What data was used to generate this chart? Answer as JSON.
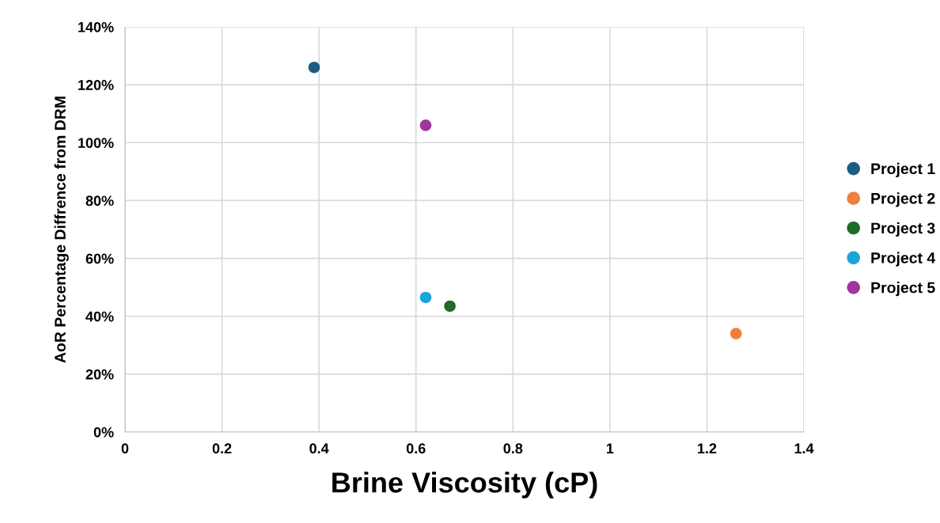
{
  "chart_data": {
    "type": "scatter",
    "xlabel": "Brine Viscosity (cP)",
    "ylabel": "AoR Percentage Diffrence from DRM",
    "series": [
      {
        "name": "Project 1",
        "color": "#1b5e80",
        "x": [
          0.39
        ],
        "values": [
          126
        ]
      },
      {
        "name": "Project 2",
        "color": "#f07f3c",
        "x": [
          1.26
        ],
        "values": [
          34
        ]
      },
      {
        "name": "Project 3",
        "color": "#1e6b2a",
        "x": [
          0.67
        ],
        "values": [
          43.5
        ]
      },
      {
        "name": "Project 4",
        "color": "#1ba3dc",
        "x": [
          0.62
        ],
        "values": [
          46.5
        ]
      },
      {
        "name": "Project 5",
        "color": "#a0359e",
        "x": [
          0.62
        ],
        "values": [
          106
        ]
      }
    ],
    "xlim": [
      0,
      1.4
    ],
    "xticks": [
      0,
      0.2,
      0.4,
      0.6,
      0.8,
      1,
      1.2,
      1.4
    ],
    "ylim": [
      0,
      140
    ],
    "yticks": [
      {
        "value": 0,
        "label": "0%"
      },
      {
        "value": 20,
        "label": "20%"
      },
      {
        "value": 40,
        "label": "40%"
      },
      {
        "value": 60,
        "label": "60%"
      },
      {
        "value": 80,
        "label": "80%"
      },
      {
        "value": 100,
        "label": "100%"
      },
      {
        "value": 120,
        "label": "120%"
      },
      {
        "value": 140,
        "label": "140%"
      }
    ],
    "grid": true,
    "legend": "right",
    "marker": "circle"
  }
}
